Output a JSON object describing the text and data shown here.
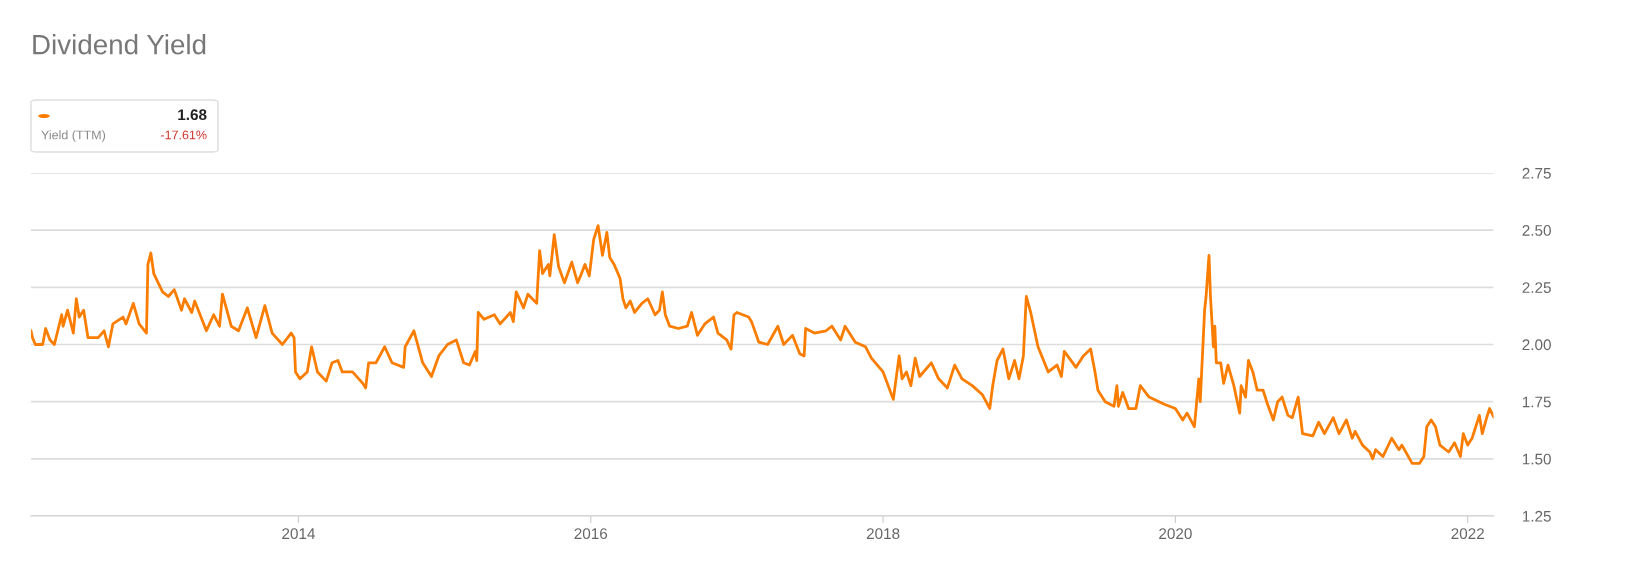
{
  "chart_data": {
    "type": "line",
    "title": "Dividend Yield",
    "annotations": [
      "1.68",
      "Yield (TTM)",
      "-17.61%"
    ],
    "x": [
      2012.17,
      2012.18,
      2012.2,
      2012.25,
      2012.27,
      2012.3,
      2012.33,
      2012.38,
      2012.39,
      2012.42,
      2012.46,
      2012.48,
      2012.5,
      2012.53,
      2012.56,
      2012.63,
      2012.67,
      2012.7,
      2012.73,
      2012.8,
      2012.82,
      2012.87,
      2012.91,
      2012.96,
      2012.97,
      2012.99,
      2013.01,
      2013.07,
      2013.11,
      2013.15,
      2013.2,
      2013.22,
      2013.27,
      2013.29,
      2013.37,
      2013.42,
      2013.46,
      2013.48,
      2013.54,
      2013.59,
      2013.65,
      2013.71,
      2013.77,
      2013.82,
      2013.89,
      2013.95,
      2013.97,
      2013.98,
      2014.01,
      2014.06,
      2014.09,
      2014.13,
      2014.19,
      2014.23,
      2014.27,
      2014.3,
      2014.37,
      2014.44,
      2014.46,
      2014.48,
      2014.53,
      2014.59,
      2014.64,
      2014.72,
      2014.73,
      2014.79,
      2014.85,
      2014.91,
      2014.96,
      2015.02,
      2015.08,
      2015.13,
      2015.17,
      2015.21,
      2015.22,
      2015.23,
      2015.27,
      2015.34,
      2015.38,
      2015.45,
      2015.47,
      2015.49,
      2015.54,
      2015.57,
      2015.63,
      2015.65,
      2015.67,
      2015.71,
      2015.72,
      2015.75,
      2015.78,
      2015.82,
      2015.87,
      2015.91,
      2015.93,
      2015.96,
      2015.99,
      2016.02,
      2016.05,
      2016.08,
      2016.11,
      2016.13,
      2016.16,
      2016.2,
      2016.22,
      2016.24,
      2016.27,
      2016.3,
      2016.35,
      2016.39,
      2016.44,
      2016.47,
      2016.49,
      2016.51,
      2016.54,
      2016.6,
      2016.66,
      2016.69,
      2016.73,
      2016.78,
      2016.84,
      2016.87,
      2016.93,
      2016.96,
      2016.98,
      2017.0,
      2017.08,
      2017.1,
      2017.15,
      2017.21,
      2017.28,
      2017.32,
      2017.38,
      2017.43,
      2017.46,
      2017.47,
      2017.53,
      2017.61,
      2017.65,
      2017.71,
      2017.74,
      2017.81,
      2017.88,
      2017.92,
      2018.0,
      2018.07,
      2018.11,
      2018.13,
      2018.16,
      2018.19,
      2018.22,
      2018.25,
      2018.33,
      2018.38,
      2018.44,
      2018.49,
      2018.54,
      2018.61,
      2018.68,
      2018.73,
      2018.75,
      2018.78,
      2018.82,
      2018.86,
      2018.9,
      2018.93,
      2018.96,
      2018.98,
      2019.01,
      2019.06,
      2019.13,
      2019.19,
      2019.22,
      2019.24,
      2019.32,
      2019.37,
      2019.42,
      2019.45,
      2019.47,
      2019.52,
      2019.58,
      2019.6,
      2019.61,
      2019.64,
      2019.68,
      2019.73,
      2019.76,
      2019.82,
      2019.92,
      2020.0,
      2020.05,
      2020.08,
      2020.13,
      2020.16,
      2020.17,
      2020.2,
      2020.21,
      2020.23,
      2020.24,
      2020.26,
      2020.27,
      2020.28,
      2020.31,
      2020.33,
      2020.36,
      2020.4,
      2020.44,
      2020.45,
      2020.48,
      2020.5,
      2020.53,
      2020.56,
      2020.6,
      2020.63,
      2020.67,
      2020.7,
      2020.73,
      2020.77,
      2020.8,
      2020.84,
      2020.87,
      2020.94,
      2020.98,
      2021.02,
      2021.08,
      2021.12,
      2021.17,
      2021.21,
      2021.23,
      2021.28,
      2021.33,
      2021.35,
      2021.37,
      2021.42,
      2021.48,
      2021.53,
      2021.55,
      2021.62,
      2021.67,
      2021.7,
      2021.72,
      2021.75,
      2021.78,
      2021.81,
      2021.87,
      2021.91,
      2021.95,
      2021.97,
      2022.0,
      2022.03,
      2022.08,
      2022.1,
      2022.13,
      2022.15,
      2022.18
    ],
    "series": [
      {
        "color": "#fa7d00",
        "values": [
          2.06,
          2.03,
          2.0,
          2.0,
          2.07,
          2.02,
          2.0,
          2.13,
          2.08,
          2.15,
          2.05,
          2.2,
          2.12,
          2.15,
          2.03,
          2.03,
          2.06,
          1.99,
          2.09,
          2.12,
          2.09,
          2.18,
          2.09,
          2.05,
          2.35,
          2.4,
          2.31,
          2.23,
          2.21,
          2.24,
          2.15,
          2.2,
          2.14,
          2.19,
          2.06,
          2.13,
          2.08,
          2.22,
          2.08,
          2.06,
          2.16,
          2.03,
          2.17,
          2.05,
          2.0,
          2.05,
          2.03,
          1.88,
          1.85,
          1.88,
          1.99,
          1.88,
          1.84,
          1.92,
          1.93,
          1.88,
          1.88,
          1.83,
          1.81,
          1.92,
          1.92,
          1.99,
          1.92,
          1.9,
          1.99,
          2.06,
          1.92,
          1.86,
          1.95,
          2.0,
          2.02,
          1.92,
          1.91,
          1.97,
          1.93,
          2.14,
          2.11,
          2.13,
          2.09,
          2.14,
          2.1,
          2.23,
          2.16,
          2.22,
          2.18,
          2.41,
          2.31,
          2.35,
          2.3,
          2.48,
          2.34,
          2.27,
          2.36,
          2.27,
          2.3,
          2.35,
          2.3,
          2.46,
          2.52,
          2.39,
          2.49,
          2.38,
          2.35,
          2.29,
          2.2,
          2.16,
          2.19,
          2.14,
          2.18,
          2.2,
          2.13,
          2.15,
          2.23,
          2.13,
          2.08,
          2.07,
          2.08,
          2.14,
          2.04,
          2.09,
          2.12,
          2.05,
          2.02,
          1.98,
          2.13,
          2.14,
          2.12,
          2.1,
          2.01,
          2.0,
          2.08,
          2.0,
          2.04,
          1.96,
          1.95,
          2.07,
          2.05,
          2.06,
          2.08,
          2.02,
          2.08,
          2.01,
          1.99,
          1.94,
          1.88,
          1.76,
          1.95,
          1.85,
          1.88,
          1.82,
          1.94,
          1.86,
          1.92,
          1.85,
          1.81,
          1.91,
          1.85,
          1.82,
          1.78,
          1.72,
          1.82,
          1.93,
          1.98,
          1.85,
          1.93,
          1.85,
          1.95,
          2.21,
          2.14,
          1.99,
          1.88,
          1.91,
          1.86,
          1.97,
          1.9,
          1.95,
          1.98,
          1.88,
          1.8,
          1.75,
          1.73,
          1.82,
          1.73,
          1.79,
          1.72,
          1.72,
          1.82,
          1.77,
          1.74,
          1.72,
          1.67,
          1.7,
          1.64,
          1.85,
          1.75,
          2.15,
          2.21,
          2.39,
          2.21,
          1.99,
          2.08,
          1.92,
          1.92,
          1.83,
          1.91,
          1.82,
          1.7,
          1.82,
          1.77,
          1.93,
          1.88,
          1.8,
          1.8,
          1.74,
          1.67,
          1.75,
          1.77,
          1.69,
          1.68,
          1.77,
          1.61,
          1.6,
          1.66,
          1.61,
          1.68,
          1.61,
          1.67,
          1.59,
          1.62,
          1.56,
          1.53,
          1.5,
          1.54,
          1.51,
          1.59,
          1.54,
          1.56,
          1.48,
          1.48,
          1.51,
          1.64,
          1.67,
          1.64,
          1.56,
          1.53,
          1.57,
          1.51,
          1.61,
          1.56,
          1.59,
          1.69,
          1.61,
          1.68,
          1.72,
          1.68
        ]
      }
    ],
    "xlim": [
      2012.17,
      2022.18
    ],
    "xticks": [
      2014,
      2016,
      2018,
      2020,
      2022
    ],
    "ylim": [
      1.25,
      2.75
    ],
    "yticks": [
      {
        "value": 1.25,
        "label": "1.25"
      },
      {
        "value": 1.5,
        "label": "1.50"
      },
      {
        "value": 1.75,
        "label": "1.75"
      },
      {
        "value": 2.0,
        "label": "2.00"
      },
      {
        "value": 2.25,
        "label": "2.25"
      },
      {
        "value": 2.5,
        "label": "2.50"
      },
      {
        "value": 2.75,
        "label": "2.75"
      }
    ],
    "grid": "y",
    "legend": false,
    "marker": "none",
    "line_style": "solid"
  }
}
